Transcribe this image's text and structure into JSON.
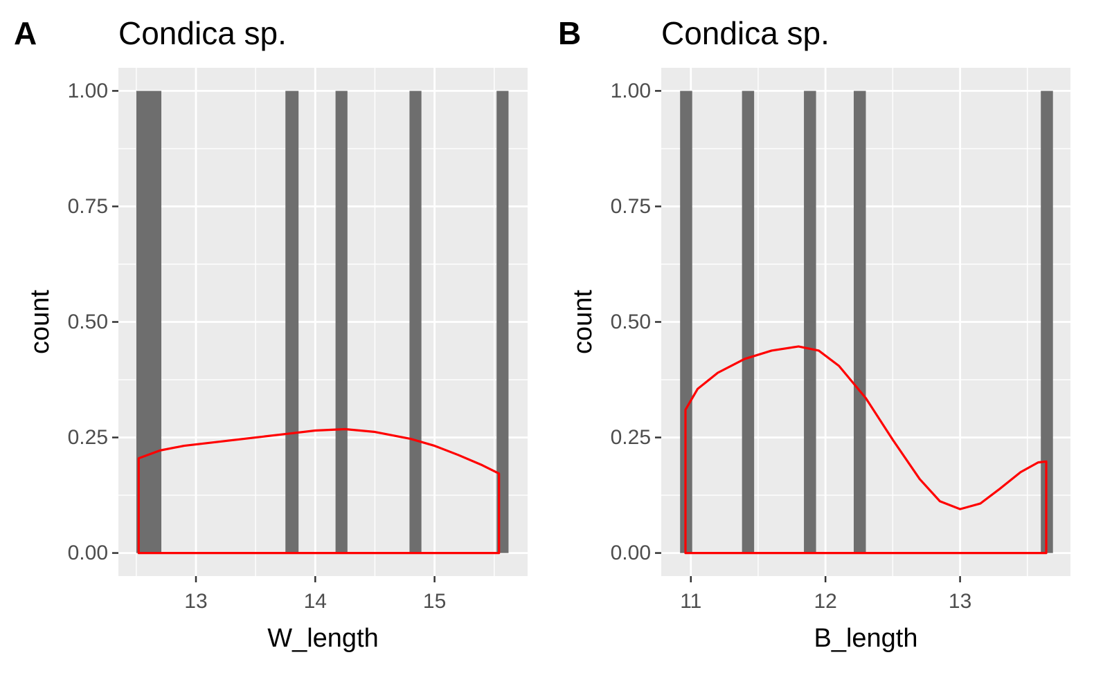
{
  "colors": {
    "panel_background": "#ebebeb",
    "grid": "#ffffff",
    "bar_fill": "#6e6e6e",
    "density_line": "#ff0000",
    "tick_text": "#4d4d4d",
    "tick_mark": "#333333"
  },
  "chart_data": [
    {
      "type": "bar",
      "panel_label": "A",
      "title": "Condica sp.",
      "xlabel": "W_length",
      "ylabel": "count",
      "xlim": [
        12.35,
        15.78
      ],
      "ylim": [
        -0.05,
        1.05
      ],
      "grid": true,
      "x_ticks": [
        13,
        14,
        15
      ],
      "x_tick_labels": [
        "13",
        "14",
        "15"
      ],
      "y_ticks": [
        0,
        0.25,
        0.5,
        0.75,
        1
      ],
      "y_tick_labels": [
        "0.00",
        "0.25",
        "0.50",
        "0.75",
        "1.00"
      ],
      "bars": [
        {
          "x0": 12.5,
          "x1": 12.71,
          "count": 1
        },
        {
          "x0": 13.75,
          "x1": 13.86,
          "count": 1
        },
        {
          "x0": 14.17,
          "x1": 14.27,
          "count": 1
        },
        {
          "x0": 14.79,
          "x1": 14.89,
          "count": 1
        },
        {
          "x0": 15.52,
          "x1": 15.62,
          "count": 1
        }
      ],
      "density": {
        "x": [
          12.52,
          12.7,
          12.9,
          13.2,
          13.5,
          13.8,
          14.0,
          14.25,
          14.5,
          14.8,
          15.0,
          15.2,
          15.4,
          15.54
        ],
        "y": [
          0.205,
          0.222,
          0.232,
          0.241,
          0.25,
          0.259,
          0.265,
          0.268,
          0.262,
          0.247,
          0.232,
          0.212,
          0.19,
          0.172
        ]
      }
    },
    {
      "type": "bar",
      "panel_label": "B",
      "title": "Condica sp.",
      "xlabel": "B_length",
      "ylabel": "count",
      "xlim": [
        10.78,
        13.82
      ],
      "ylim": [
        -0.05,
        1.05
      ],
      "grid": true,
      "x_ticks": [
        11,
        12,
        13
      ],
      "x_tick_labels": [
        "11",
        "12",
        "13"
      ],
      "y_ticks": [
        0,
        0.25,
        0.5,
        0.75,
        1
      ],
      "y_tick_labels": [
        "0.00",
        "0.25",
        "0.50",
        "0.75",
        "1.00"
      ],
      "bars": [
        {
          "x0": 10.92,
          "x1": 11.01,
          "count": 1
        },
        {
          "x0": 11.38,
          "x1": 11.47,
          "count": 1
        },
        {
          "x0": 11.84,
          "x1": 11.93,
          "count": 1
        },
        {
          "x0": 12.21,
          "x1": 12.3,
          "count": 1
        },
        {
          "x0": 13.6,
          "x1": 13.69,
          "count": 1
        }
      ],
      "density": {
        "x": [
          10.96,
          11.05,
          11.2,
          11.4,
          11.6,
          11.8,
          11.95,
          12.1,
          12.3,
          12.5,
          12.7,
          12.85,
          13.0,
          13.15,
          13.3,
          13.45,
          13.58,
          13.64
        ],
        "y": [
          0.31,
          0.355,
          0.39,
          0.42,
          0.438,
          0.447,
          0.438,
          0.405,
          0.335,
          0.245,
          0.16,
          0.112,
          0.095,
          0.107,
          0.14,
          0.175,
          0.196,
          0.198
        ]
      }
    }
  ]
}
